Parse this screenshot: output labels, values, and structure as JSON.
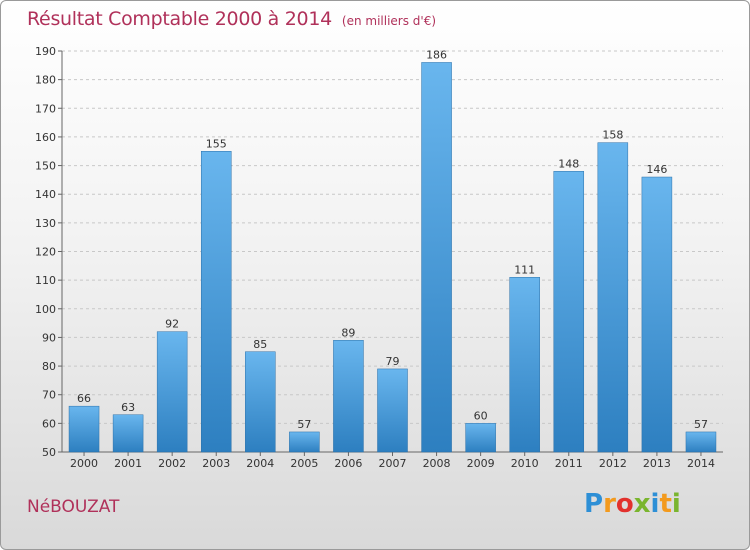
{
  "title": "Résultat Comptable 2000 à 2014",
  "subtitle": "(en milliers d'€)",
  "commune": "NéBOUZAT",
  "logo": {
    "letters": [
      "P",
      "r",
      "o",
      "x",
      "i",
      "t",
      "i"
    ],
    "colors": [
      "#2d8fd6",
      "#f39a1d",
      "#e2312d",
      "#7ab52e",
      "#2d8fd6",
      "#f39a1d",
      "#7ab52e"
    ]
  },
  "colors": {
    "bar_top": "#69b6ee",
    "bar_bottom": "#2d7fc0",
    "title": "#b0315a"
  },
  "chart_data": {
    "type": "bar",
    "categories": [
      "2000",
      "2001",
      "2002",
      "2003",
      "2004",
      "2005",
      "2006",
      "2007",
      "2008",
      "2009",
      "2010",
      "2011",
      "2012",
      "2013",
      "2014"
    ],
    "values": [
      66,
      63,
      92,
      155,
      85,
      57,
      89,
      79,
      186,
      60,
      111,
      148,
      158,
      146,
      57
    ],
    "ylim": [
      50,
      190
    ],
    "yticks": [
      50,
      60,
      70,
      80,
      90,
      100,
      110,
      120,
      130,
      140,
      150,
      160,
      170,
      180,
      190
    ],
    "grid": true
  }
}
